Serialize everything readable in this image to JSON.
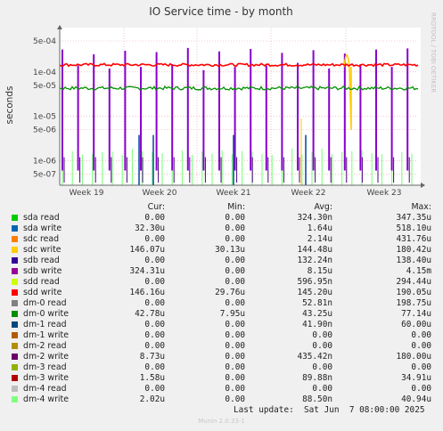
{
  "chart_data": {
    "type": "line",
    "title": "IO Service time - by month",
    "ylabel": "seconds",
    "y_scale": "log",
    "ylim": [
      2.8e-07,
      0.001
    ],
    "y_ticks": [
      {
        "value": 5e-07,
        "label": "5e-07"
      },
      {
        "value": 1e-06,
        "label": "1e-06"
      },
      {
        "value": 5e-06,
        "label": "5e-06"
      },
      {
        "value": 1e-05,
        "label": "1e-05"
      },
      {
        "value": 5e-05,
        "label": "5e-05"
      },
      {
        "value": 0.0001,
        "label": "1e-04"
      },
      {
        "value": 0.0005,
        "label": "5e-04"
      }
    ],
    "x_ticks": [
      "Week 19",
      "Week 20",
      "Week 21",
      "Week 22",
      "Week 23"
    ],
    "watermark": "RRDTOOL / TOBI OETIKER",
    "series": [
      {
        "name": "sdb write",
        "color": "#8800cc",
        "level": 8.15e-06,
        "spikes": [
          0.00032,
          0.00014,
          0.00025,
          0.00012,
          0.0003,
          0.00013,
          0.00028,
          0.00015,
          0.000347,
          0.00011,
          0.00029,
          0.00013,
          0.00033,
          0.00014,
          0.00027,
          0.00016,
          0.00031,
          0.00012,
          0.00026,
          0.00015,
          0.00032,
          0.00013,
          0.00034
        ]
      },
      {
        "name": "sdd write",
        "color": "#ff0000",
        "level": 0.00014519
      },
      {
        "name": "dm-0 write",
        "color": "#008f00",
        "level": 4.324e-05
      },
      {
        "name": "dm-2 write",
        "color": "#4c0080",
        "level": 4.35e-07
      },
      {
        "name": "dm-4 write",
        "color": "#80ff80",
        "level": 8.85e-08
      },
      {
        "name": "dm-1 read",
        "color": "#00469e",
        "level": 4.19e-08
      },
      {
        "name": "sdc write",
        "color": "#ffcc00",
        "level": 0.00014448
      }
    ],
    "legend_columns": [
      "Cur:",
      "Min:",
      "Avg:",
      "Max:"
    ],
    "legend": [
      {
        "name": "sda read",
        "color": "#00cc00",
        "cur": "0.00",
        "min": "0.00",
        "avg": "324.30n",
        "max": "347.35u"
      },
      {
        "name": "sda write",
        "color": "#0066b3",
        "cur": "32.30u",
        "min": "0.00",
        "avg": "1.64u",
        "max": "518.10u"
      },
      {
        "name": "sdc read",
        "color": "#ff8000",
        "cur": "0.00",
        "min": "0.00",
        "avg": "2.14u",
        "max": "431.76u"
      },
      {
        "name": "sdc write",
        "color": "#ffcc00",
        "cur": "146.07u",
        "min": "30.13u",
        "avg": "144.48u",
        "max": "180.42u"
      },
      {
        "name": "sdb read",
        "color": "#330099",
        "cur": "0.00",
        "min": "0.00",
        "avg": "132.24n",
        "max": "138.40u"
      },
      {
        "name": "sdb write",
        "color": "#990099",
        "cur": "324.31u",
        "min": "0.00",
        "avg": "8.15u",
        "max": "4.15m"
      },
      {
        "name": "sdd read",
        "color": "#ccff00",
        "cur": "0.00",
        "min": "0.00",
        "avg": "596.95n",
        "max": "294.44u"
      },
      {
        "name": "sdd write",
        "color": "#ff0000",
        "cur": "146.16u",
        "min": "29.76u",
        "avg": "145.20u",
        "max": "190.05u"
      },
      {
        "name": "dm-0 read",
        "color": "#808080",
        "cur": "0.00",
        "min": "0.00",
        "avg": "52.81n",
        "max": "198.75u"
      },
      {
        "name": "dm-0 write",
        "color": "#008f00",
        "cur": "42.78u",
        "min": "7.95u",
        "avg": "43.25u",
        "max": "77.14u"
      },
      {
        "name": "dm-1 read",
        "color": "#00487d",
        "cur": "0.00",
        "min": "0.00",
        "avg": "41.90n",
        "max": "60.00u"
      },
      {
        "name": "dm-1 write",
        "color": "#b35a00",
        "cur": "0.00",
        "min": "0.00",
        "avg": "0.00",
        "max": "0.00"
      },
      {
        "name": "dm-2 read",
        "color": "#b38f00",
        "cur": "0.00",
        "min": "0.00",
        "avg": "0.00",
        "max": "0.00"
      },
      {
        "name": "dm-2 write",
        "color": "#6b006b",
        "cur": "8.73u",
        "min": "0.00",
        "avg": "435.42n",
        "max": "180.00u"
      },
      {
        "name": "dm-3 read",
        "color": "#8fb300",
        "cur": "0.00",
        "min": "0.00",
        "avg": "0.00",
        "max": "0.00"
      },
      {
        "name": "dm-3 write",
        "color": "#b30000",
        "cur": "1.58u",
        "min": "0.00",
        "avg": "89.88n",
        "max": "34.91u"
      },
      {
        "name": "dm-4 read",
        "color": "#bebebe",
        "cur": "0.00",
        "min": "0.00",
        "avg": "0.00",
        "max": "0.00"
      },
      {
        "name": "dm-4 write",
        "color": "#80ff80",
        "cur": "2.02u",
        "min": "0.00",
        "avg": "88.50n",
        "max": "40.94u"
      }
    ]
  },
  "footer": {
    "last_update": "Last update:  Sat Jun  7 08:00:00 2025",
    "munin_version": "Munin 2.0.33-1"
  }
}
